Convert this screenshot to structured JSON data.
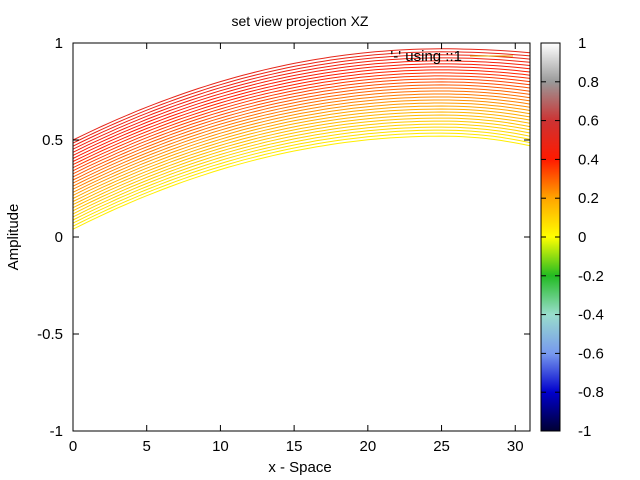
{
  "chart_data": {
    "type": "line",
    "title": "set view projection XZ",
    "xlabel": "x - Space",
    "ylabel": "Amplitude",
    "xlim": [
      0,
      31
    ],
    "ylim": [
      -1,
      1
    ],
    "xticks": [
      "0",
      "5",
      "10",
      "15",
      "20",
      "25",
      "30"
    ],
    "yticks": [
      "-1",
      "-0.5",
      "0",
      "0.5",
      "1"
    ],
    "grid": false,
    "legend": {
      "label": "'-' using ::1",
      "position": "top-right",
      "color": "#e0a000"
    },
    "colorbar": {
      "range": [
        -1,
        1
      ],
      "ticks": [
        "-1",
        "-0.8",
        "-0.6",
        "-0.4",
        "-0.2",
        "0",
        "0.2",
        "0.4",
        "0.6",
        "0.8",
        "1"
      ],
      "stops": [
        {
          "v": -1.0,
          "color": "#000033"
        },
        {
          "v": -0.8,
          "color": "#0000cc"
        },
        {
          "v": -0.6,
          "color": "#7799ee"
        },
        {
          "v": -0.4,
          "color": "#99ddcc"
        },
        {
          "v": -0.2,
          "color": "#22bb22"
        },
        {
          "v": 0.0,
          "color": "#ffff00"
        },
        {
          "v": 0.2,
          "color": "#ffa500"
        },
        {
          "v": 0.4,
          "color": "#ff1a00"
        },
        {
          "v": 0.6,
          "color": "#cc3333"
        },
        {
          "v": 0.8,
          "color": "#999999"
        },
        {
          "v": 1.0,
          "color": "#ffffff"
        }
      ]
    },
    "series": {
      "count": 30,
      "x_peak": 25,
      "start_first": 0.04,
      "start_last": 0.5,
      "peak_first": 0.52,
      "peak_last": 0.97,
      "end_first": 0.47,
      "end_last": 0.95
    }
  }
}
